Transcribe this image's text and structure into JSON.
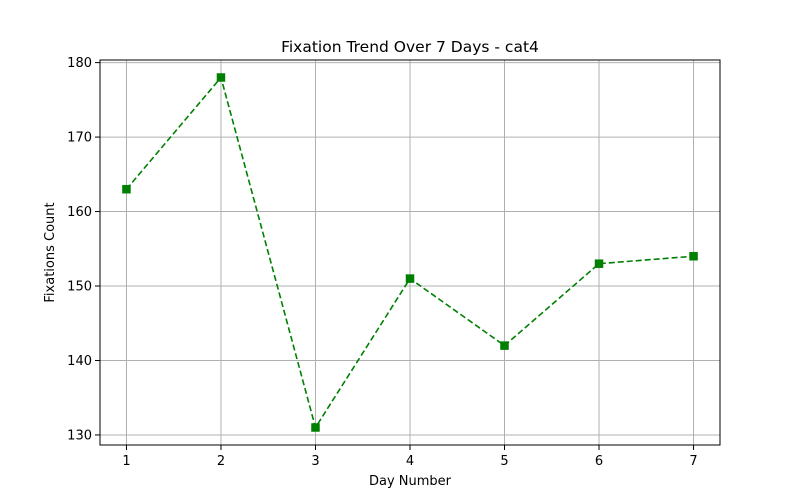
{
  "chart_data": {
    "type": "line",
    "title": "Fixation Trend Over 7 Days - cat4",
    "xlabel": "Day Number",
    "ylabel": "Fixations Count",
    "x": [
      1,
      2,
      3,
      4,
      5,
      6,
      7
    ],
    "xticks": [
      "1",
      "2",
      "3",
      "4",
      "5",
      "6",
      "7"
    ],
    "yticks": [
      "130",
      "140",
      "150",
      "160",
      "170",
      "180"
    ],
    "xlim": [
      0.72,
      7.28
    ],
    "ylim": [
      128.65,
      180.35
    ],
    "grid": true,
    "series": [
      {
        "values": [
          163,
          178,
          131,
          151,
          142,
          153,
          154
        ],
        "color": "#008000",
        "line_style": "dashed",
        "marker": "square"
      }
    ]
  }
}
